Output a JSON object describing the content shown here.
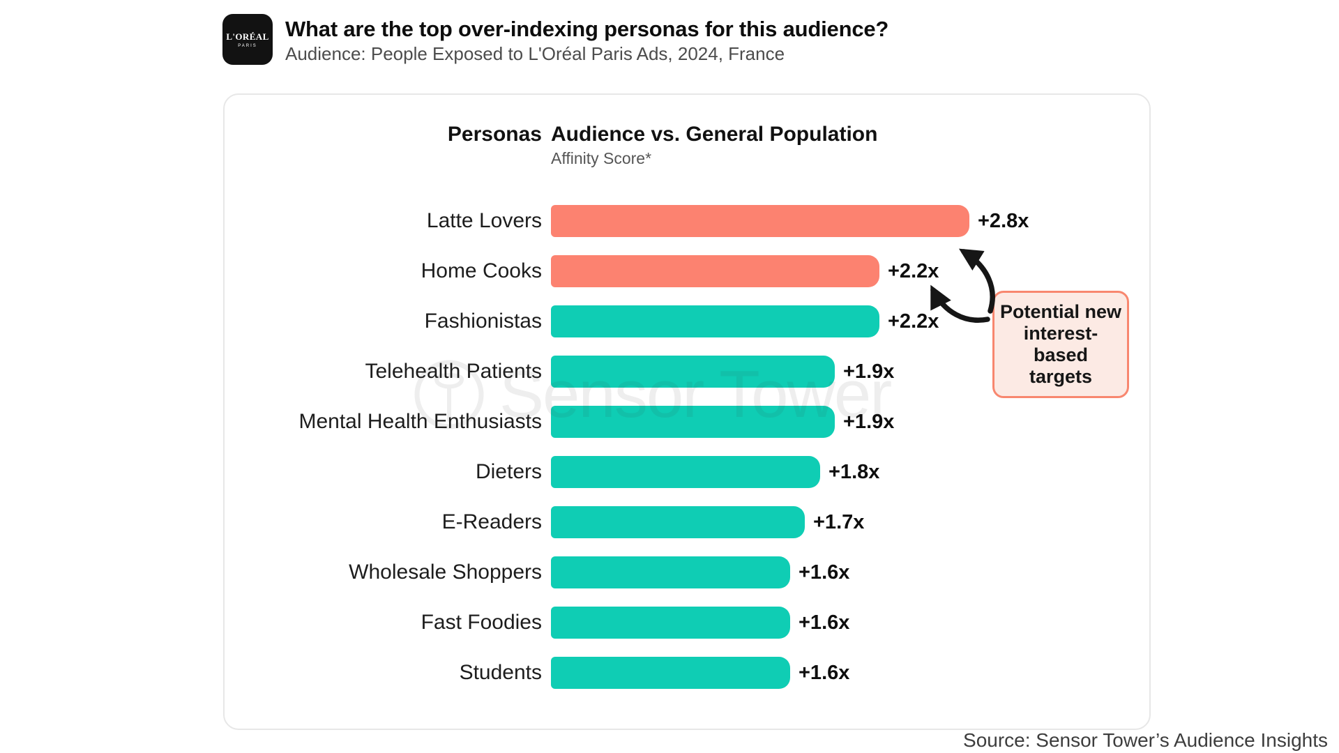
{
  "header": {
    "logo_line1": "L'ORÉAL",
    "logo_line2": "PARIS",
    "title": "What are the top over-indexing personas for this audience?",
    "subtitle": "Audience: People Exposed to L'Oréal Paris Ads, 2024, France"
  },
  "chart": {
    "personas_header": "Personas",
    "audience_header": "Audience vs. General Population",
    "affinity_label": "Affinity Score*"
  },
  "chart_data": {
    "type": "bar",
    "orientation": "horizontal",
    "title": "Audience vs. General Population",
    "subtitle": "Affinity Score*",
    "xlim": [
      0,
      3.0
    ],
    "grid": false,
    "categories": [
      "Latte Lovers",
      "Home Cooks",
      "Fashionistas",
      "Telehealth Patients",
      "Mental Health Enthusiasts",
      "Dieters",
      "E-Readers",
      "Wholesale Shoppers",
      "Fast Foodies",
      "Students"
    ],
    "values": [
      2.8,
      2.2,
      2.2,
      1.9,
      1.9,
      1.8,
      1.7,
      1.6,
      1.6,
      1.6
    ],
    "value_labels": [
      "+2.8x",
      "+2.2x",
      "+2.2x",
      "+1.9x",
      "+1.9x",
      "+1.8x",
      "+1.7x",
      "+1.6x",
      "+1.6x",
      "+1.6x"
    ],
    "highlighted": [
      true,
      true,
      false,
      false,
      false,
      false,
      false,
      false,
      false,
      false
    ],
    "highlight_color": "#FC8270",
    "base_color": "#0FCDB4"
  },
  "annotation": {
    "lines": [
      "Potential new",
      "interest-based",
      "targets"
    ],
    "bg_color": "#FCEAE4",
    "border_color": "#F8876F"
  },
  "watermark": {
    "text": "Sensor Tower"
  },
  "footer": {
    "source": "Source: Sensor Tower’s Audience Insights"
  }
}
